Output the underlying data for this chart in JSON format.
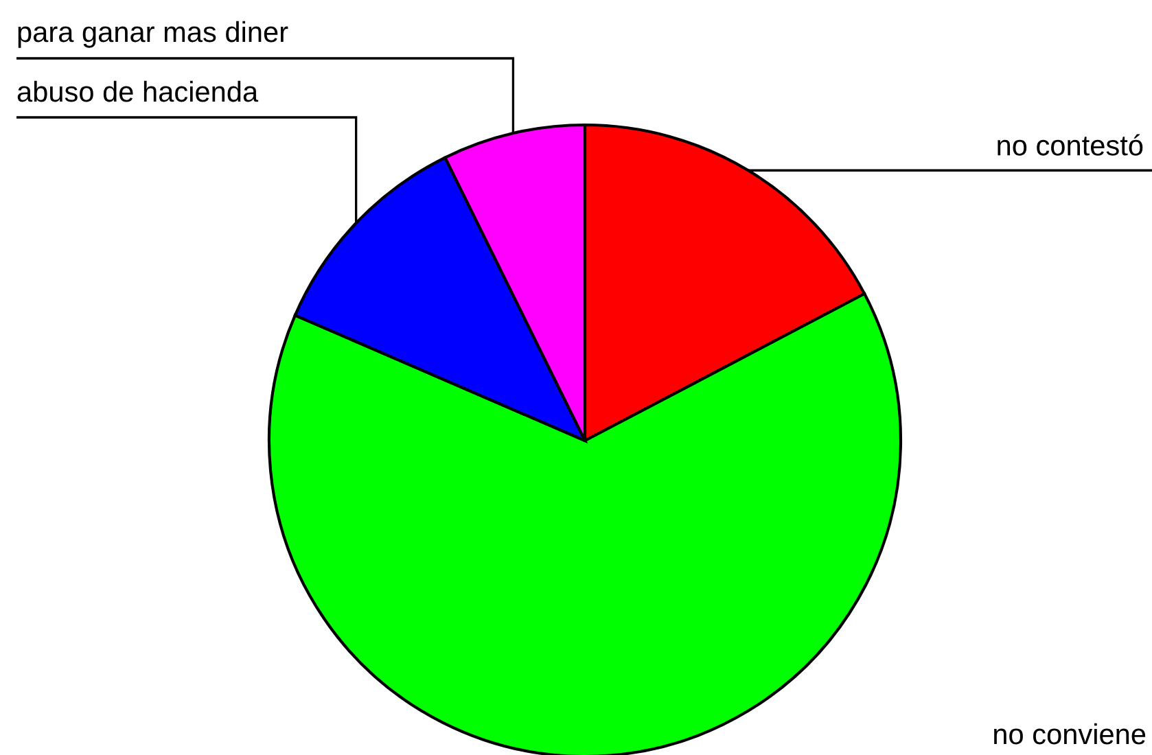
{
  "chart_data": {
    "type": "pie",
    "categories": [
      "no contestó",
      "no conviene",
      "abuso de hacienda",
      "para ganar mas diner"
    ],
    "values": [
      17.3,
      64.2,
      11.2,
      7.3
    ],
    "colors": [
      "#ff0000",
      "#00ff00",
      "#0000ff",
      "#ff00ff"
    ]
  }
}
